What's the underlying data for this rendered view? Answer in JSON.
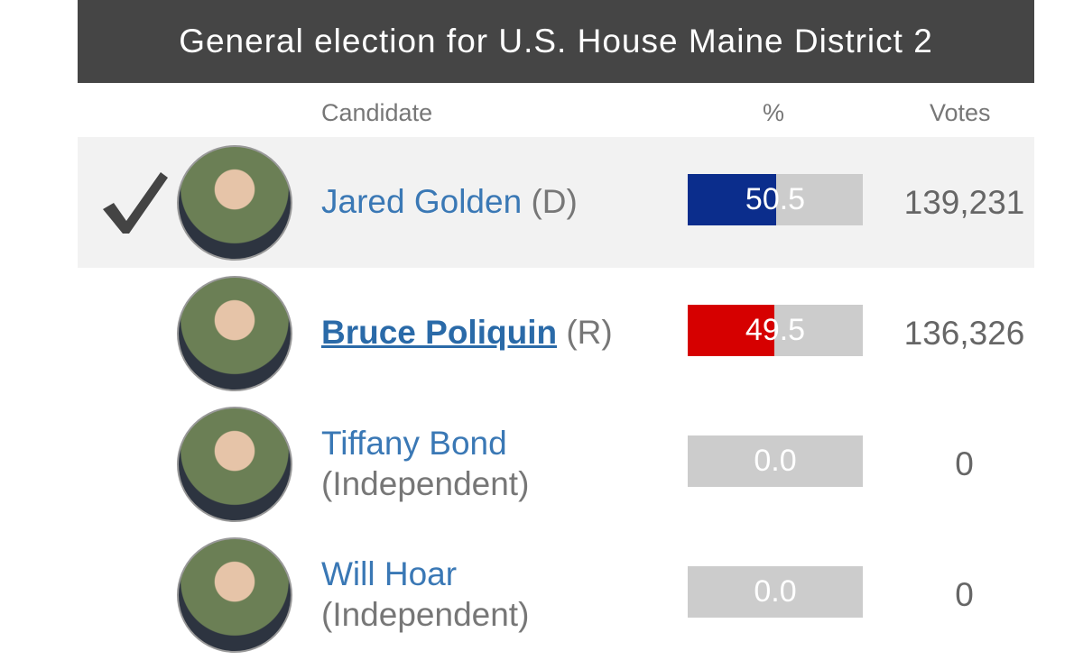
{
  "header": {
    "title": "General election for U.S. House Maine District 2"
  },
  "table": {
    "columns": [
      "Candidate",
      "%",
      "Votes"
    ],
    "rows": [
      {
        "name": "Jared Golden",
        "party": "(D)",
        "pct": 50.5,
        "pct_label": "50.5",
        "votes": "139,231",
        "color": "#0b2d8c",
        "winner": true,
        "link": false
      },
      {
        "name": "Bruce Poliquin",
        "party": "(R)",
        "pct": 49.5,
        "pct_label": "49.5",
        "votes": "136,326",
        "color": "#d60000",
        "winner": false,
        "link": true
      },
      {
        "name": "Tiffany Bond",
        "party": "(Independent)",
        "pct": 0,
        "pct_label": "0.0",
        "votes": "0",
        "color": "#cccccc",
        "winner": false,
        "link": false
      },
      {
        "name": "Will Hoar",
        "party": "(Independent)",
        "pct": 0,
        "pct_label": "0.0",
        "votes": "0",
        "color": "#cccccc",
        "winner": false,
        "link": false
      }
    ]
  }
}
